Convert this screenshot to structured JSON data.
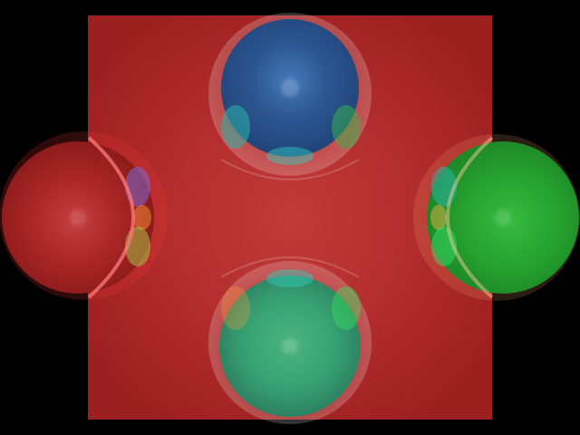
{
  "scene": {
    "background_color": "#000000",
    "backdrop": {
      "shape": "square",
      "color": "#b32a2a"
    },
    "spheres": [
      {
        "name": "blue",
        "color": "#1f4f8f"
      },
      {
        "name": "red",
        "color": "#b12222"
      },
      {
        "name": "green",
        "color": "#1f9f2a"
      },
      {
        "name": "teal-green",
        "color": "#2f9f6f"
      }
    ]
  }
}
